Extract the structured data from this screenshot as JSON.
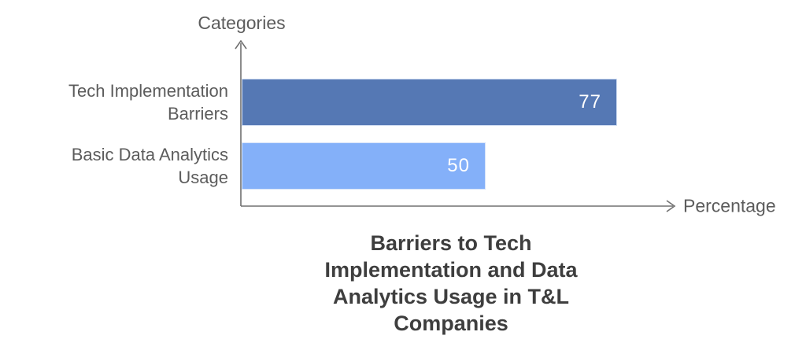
{
  "chart_data": {
    "type": "bar",
    "orientation": "horizontal",
    "title": "Barriers to Tech Implementation and Data Analytics Usage in T&L Companies",
    "title_lines": [
      "Barriers to Tech",
      "Implementation and Data",
      "Analytics Usage in T&L",
      "Companies"
    ],
    "xlabel": "Percentage",
    "ylabel": "Categories",
    "categories": [
      "Tech Implementation Barriers",
      "Basic Data Analytics Usage"
    ],
    "category_label_lines": [
      [
        "Tech Implementation",
        "Barriers"
      ],
      [
        "Basic Data Analytics",
        "Usage"
      ]
    ],
    "values": [
      77,
      50
    ],
    "value_labels": [
      "77",
      "50"
    ],
    "bar_colors": [
      "#5578b4",
      "#84b0f9"
    ],
    "value_label_color": "#ffffff",
    "axis_color": "#707070",
    "label_color": "#5c5c5c",
    "title_color": "#3e3e3e",
    "xlim": [
      0,
      89
    ],
    "grid": false,
    "legend": false,
    "value_labels_position": "inside-right"
  }
}
